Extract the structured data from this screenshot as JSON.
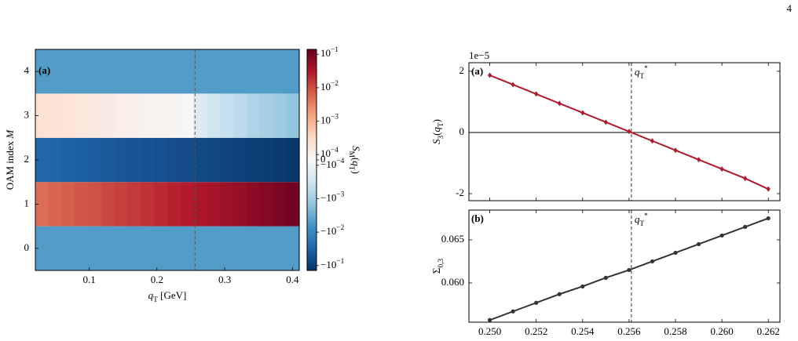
{
  "page_number": "4",
  "chart_data": [
    {
      "type": "heatmap",
      "annotation": "(a)",
      "xlabel": "qT [GeV]",
      "ylabel": "OAM index M",
      "x": [
        0.03,
        0.0495,
        0.069,
        0.0885,
        0.108,
        0.1275,
        0.147,
        0.1665,
        0.186,
        0.2055,
        0.225,
        0.2445,
        0.264,
        0.2835,
        0.303,
        0.3225,
        0.342,
        0.3615,
        0.381,
        0.4005
      ],
      "y": [
        0,
        1,
        2,
        3,
        4
      ],
      "z": [
        [
          -0.005,
          -0.005,
          -0.005,
          -0.005,
          -0.005,
          -0.005,
          -0.005,
          -0.005,
          -0.005,
          -0.005,
          -0.005,
          -0.005,
          -0.005,
          -0.005,
          -0.005,
          -0.005,
          -0.005,
          -0.005,
          -0.005,
          -0.005
        ],
        [
          0.005,
          0.006,
          0.007,
          0.008,
          0.009,
          0.011,
          0.013,
          0.015,
          0.018,
          0.021,
          0.025,
          0.029,
          0.034,
          0.04,
          0.047,
          0.055,
          0.065,
          0.077,
          0.092,
          0.11
        ],
        [
          -0.03,
          -0.032,
          -0.035,
          -0.037,
          -0.04,
          -0.043,
          -0.046,
          -0.049,
          -0.052,
          -0.056,
          -0.06,
          -0.064,
          -0.068,
          -0.073,
          -0.078,
          -0.084,
          -0.09,
          -0.097,
          -0.105,
          -0.115
        ],
        [
          0.00022,
          0.0002,
          0.00018,
          0.00016,
          0.00015,
          0.00013,
          0.00011,
          0.0001,
          8e-05,
          6e-05,
          4e-05,
          1e-05,
          -0.0002,
          -0.0003,
          -0.0004,
          -0.0005,
          -0.0007,
          -0.0009,
          -0.0011,
          -0.0014
        ],
        [
          -0.005,
          -0.005,
          -0.005,
          -0.005,
          -0.005,
          -0.005,
          -0.005,
          -0.005,
          -0.005,
          -0.005,
          -0.005,
          -0.005,
          -0.005,
          -0.005,
          -0.005,
          -0.005,
          -0.005,
          -0.005,
          -0.005,
          -0.005
        ]
      ],
      "xlim": [
        0.0205,
        0.41
      ],
      "xticks": [
        0.1,
        0.2,
        0.3,
        0.4
      ],
      "ylim": [
        -0.5,
        4.5
      ],
      "yticks": [
        0,
        1,
        2,
        3,
        4
      ],
      "vline": 0.2561,
      "colorbar": {
        "label": "SM(qT)",
        "clim": [
          -0.14,
          0.14
        ],
        "linthresh": 0.0001,
        "colormap": "RdBu_r",
        "ticks": [
          {
            "value": 0.1,
            "label": "10−1"
          },
          {
            "value": 0.01,
            "label": "10−2"
          },
          {
            "value": 0.001,
            "label": "10−3"
          },
          {
            "value": 0.0001,
            "label": "10−4"
          },
          0,
          {
            "value": -0.0001,
            "label": "−10−4"
          },
          {
            "value": -0.001,
            "label": "−10−3"
          },
          {
            "value": -0.01,
            "label": "−10−2"
          },
          {
            "value": -0.1,
            "label": "−10−1"
          }
        ]
      }
    },
    {
      "type": "line",
      "annotation": "(a)",
      "vline_label": "qT*",
      "ylabel": "S3(qT)",
      "offset_label": "1e−5",
      "x": [
        0.25,
        0.251,
        0.252,
        0.253,
        0.254,
        0.255,
        0.256,
        0.257,
        0.258,
        0.259,
        0.26,
        0.261,
        0.262
      ],
      "series": [
        {
          "color": "#b2182b",
          "marker": "diamond",
          "values": [
            1.87,
            1.563,
            1.257,
            0.95,
            0.644,
            0.337,
            0.031,
            -0.276,
            -0.582,
            -0.889,
            -1.195,
            -1.502,
            -1.85
          ]
        }
      ],
      "xlim": [
        0.2491,
        0.2625
      ],
      "ylim": [
        -2.23,
        2.28
      ],
      "yticks": [
        -2,
        0,
        2
      ],
      "hline": 0,
      "vline": 0.2561
    },
    {
      "type": "line",
      "annotation": "(b)",
      "vline_label": "qT*",
      "ylabel": "Σ0,3",
      "x": [
        0.25,
        0.251,
        0.252,
        0.253,
        0.254,
        0.255,
        0.256,
        0.257,
        0.258,
        0.259,
        0.26,
        0.261,
        0.262
      ],
      "series": [
        {
          "color": "#333333",
          "marker": "circle",
          "values": [
            0.0557,
            0.0567,
            0.0577,
            0.0587,
            0.0596,
            0.0606,
            0.0615,
            0.0625,
            0.0635,
            0.0645,
            0.0655,
            0.0665,
            0.0675
          ]
        }
      ],
      "xlim": [
        0.2491,
        0.2625
      ],
      "ylim": [
        0.05545,
        0.06845
      ],
      "xticks": [
        {
          "value": 0.25,
          "label": "0.250"
        },
        0.252,
        0.254,
        0.256,
        0.258,
        {
          "value": 0.26,
          "label": "0.260"
        },
        0.262
      ],
      "yticks": [
        {
          "value": 0.06,
          "label": "0.060"
        },
        0.065
      ],
      "vline": 0.2561
    }
  ]
}
